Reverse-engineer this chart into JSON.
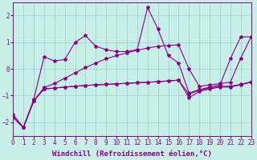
{
  "background_color": "#c8eee8",
  "grid_color": "#a0cccc",
  "line_color": "#880088",
  "xlim": [
    0,
    23
  ],
  "ylim": [
    -2.5,
    2.5
  ],
  "yticks": [
    -2,
    -1,
    0,
    1,
    2
  ],
  "xticks": [
    0,
    1,
    2,
    3,
    4,
    5,
    6,
    7,
    8,
    9,
    10,
    11,
    12,
    13,
    14,
    15,
    16,
    17,
    18,
    19,
    20,
    21,
    22,
    23
  ],
  "xlabel": "Windchill (Refroidissement éolien,°C)",
  "series": [
    {
      "x": [
        0,
        1,
        2,
        3,
        4,
        5,
        6,
        7,
        8,
        9,
        10,
        11,
        12,
        13,
        14,
        15,
        16,
        17,
        18,
        19,
        20,
        21,
        22,
        23
      ],
      "y": [
        -1.7,
        -2.2,
        -1.15,
        0.45,
        0.3,
        0.35,
        1.0,
        1.25,
        0.85,
        0.72,
        0.65,
        0.65,
        0.72,
        2.3,
        1.5,
        0.5,
        0.22,
        -0.9,
        -0.78,
        -0.68,
        -0.6,
        0.38,
        1.2,
        1.2
      ]
    },
    {
      "x": [
        0,
        1,
        2,
        3,
        4,
        5,
        6,
        7,
        8,
        9,
        10,
        11,
        12,
        13,
        14,
        15,
        16,
        17,
        18,
        19,
        20,
        21,
        22,
        23
      ],
      "y": [
        -1.8,
        -2.2,
        -1.2,
        -0.7,
        -0.55,
        -0.35,
        -0.15,
        0.05,
        0.22,
        0.38,
        0.5,
        0.6,
        0.7,
        0.78,
        0.85,
        0.88,
        0.9,
        0.0,
        -0.65,
        -0.6,
        -0.55,
        -0.5,
        0.4,
        1.2
      ]
    },
    {
      "x": [
        0,
        1,
        2,
        3,
        4,
        5,
        6,
        7,
        8,
        9,
        10,
        11,
        12,
        13,
        14,
        15,
        16,
        17,
        18,
        19,
        20,
        21,
        22,
        23
      ],
      "y": [
        -1.8,
        -2.2,
        -1.2,
        -0.75,
        -0.72,
        -0.68,
        -0.65,
        -0.62,
        -0.6,
        -0.58,
        -0.56,
        -0.54,
        -0.52,
        -0.5,
        -0.48,
        -0.45,
        -0.42,
        -0.95,
        -0.8,
        -0.72,
        -0.65,
        -0.65,
        -0.58,
        -0.48
      ]
    },
    {
      "x": [
        0,
        1,
        2,
        3,
        4,
        5,
        6,
        7,
        8,
        9,
        10,
        11,
        12,
        13,
        14,
        15,
        16,
        17,
        18,
        19,
        20,
        21,
        22,
        23
      ],
      "y": [
        -1.8,
        -2.2,
        -1.2,
        -0.75,
        -0.72,
        -0.68,
        -0.65,
        -0.62,
        -0.6,
        -0.58,
        -0.56,
        -0.54,
        -0.52,
        -0.5,
        -0.48,
        -0.45,
        -0.42,
        -1.08,
        -0.85,
        -0.75,
        -0.68,
        -0.68,
        -0.6,
        -0.5
      ]
    }
  ],
  "marker": "*",
  "marker_size": 3,
  "linewidth": 0.8,
  "font_size": 5.5,
  "xlabel_fontsize": 6.5
}
